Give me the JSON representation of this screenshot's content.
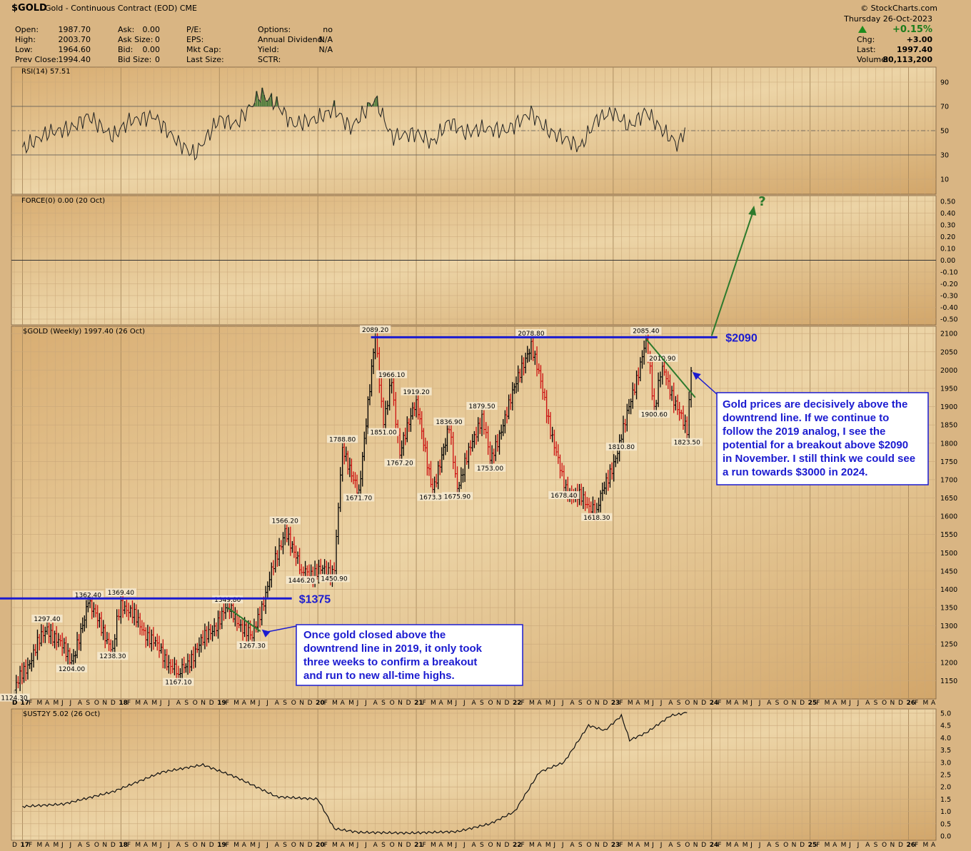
{
  "header": {
    "symbol": "$GOLD",
    "description": "Gold - Continuous Contract (EOD) CME",
    "watermark": "© StockCharts.com"
  },
  "quote": {
    "open_label": "Open:",
    "open": "1987.70",
    "high_label": "High:",
    "high": "2003.70",
    "low_label": "Low:",
    "low": "1964.60",
    "prev_close_label": "Prev Close:",
    "prev_close": "1994.40",
    "ask_label": "Ask:",
    "ask": "0.00",
    "ask_size_label": "Ask Size:",
    "ask_size": "0",
    "bid_label": "Bid:",
    "bid": "0.00",
    "bid_size_label": "Bid Size:",
    "bid_size": "0",
    "pe_label": "P/E:",
    "eps_label": "EPS:",
    "mkt_cap_label": "Mkt Cap:",
    "last_size_label": "Last Size:",
    "options_label": "Options:",
    "options": "no",
    "annual_dividend_label": "Annual Dividend:",
    "annual_dividend": "N/A",
    "yield_label": "Yield:",
    "yield": "N/A",
    "sctr_label": "SCTR:"
  },
  "summary": {
    "date": "Thursday  26-Oct-2023",
    "pct": "+0.15%",
    "chg_label": "Chg:",
    "chg": "+3.00",
    "last_label": "Last:",
    "last": "1997.40",
    "volume_label": "Volume:",
    "volume": "80,113,200"
  },
  "panels": {
    "rsi_title": "RSI(14) 57.51",
    "force_title": "FORCE(0) 0.00 (20 Oct)",
    "price_title": "$GOLD (Weekly) 1997.40 (26 Oct)",
    "ust_title": "$UST2Y 5.02 (26 Oct)"
  },
  "annotations": {
    "level_2090": "$2090",
    "level_1375": "$1375",
    "question": "?",
    "callout_2019": [
      "Once gold closed above the",
      "downtrend line in 2019, it only took",
      "three weeks to confirm a breakout",
      "and run to new all-time highs."
    ],
    "callout_2023": [
      "Gold prices are decisively above the",
      "downtrend line. If we continue to",
      "follow the 2019 analog, I see the",
      "potential for a breakout above $2090",
      "in November. I still think we could see",
      "a run towards $3000 in 2024."
    ]
  },
  "colors": {
    "up_bar": "#000000",
    "down_bar": "#cc1111",
    "resistance_line": "#1b1bd0",
    "trend_line": "#2d7a2d",
    "rsi_fill": "#4a7a3a"
  },
  "chart_data": [
    {
      "type": "line",
      "title": "RSI(14) 57.51",
      "x_range": [
        "2017-01",
        "2023-10"
      ],
      "ylim": [
        0,
        100
      ],
      "y_ticks": [
        10,
        30,
        50,
        70,
        90
      ],
      "series": [
        {
          "name": "RSI(14)",
          "x": [
            "2017-01",
            "2017-04",
            "2017-07",
            "2017-09",
            "2017-12",
            "2018-02",
            "2018-05",
            "2018-08",
            "2018-10",
            "2019-01",
            "2019-03",
            "2019-06",
            "2019-08",
            "2019-10",
            "2020-01",
            "2020-03",
            "2020-05",
            "2020-08",
            "2020-10",
            "2021-01",
            "2021-03",
            "2021-05",
            "2021-07",
            "2021-09",
            "2021-12",
            "2022-03",
            "2022-05",
            "2022-07",
            "2022-09",
            "2022-11",
            "2023-01",
            "2023-03",
            "2023-05",
            "2023-07",
            "2023-09",
            "2023-10"
          ],
          "values": [
            35,
            48,
            52,
            62,
            45,
            58,
            62,
            40,
            30,
            60,
            55,
            80,
            72,
            55,
            60,
            68,
            52,
            76,
            45,
            48,
            40,
            58,
            48,
            52,
            50,
            65,
            50,
            44,
            36,
            60,
            65,
            53,
            66,
            50,
            38,
            58
          ]
        }
      ]
    },
    {
      "type": "line",
      "title": "FORCE(0) 0.00 (20 Oct)",
      "ylim": [
        -0.5,
        0.5
      ],
      "y_ticks": [
        0.5,
        0.4,
        0.3,
        0.2,
        0.1,
        0.0,
        -0.1,
        -0.2,
        -0.3,
        -0.4,
        -0.5
      ],
      "series": [
        {
          "name": "FORCE(0)",
          "x": [
            "2017-01",
            "2023-10"
          ],
          "values": [
            0,
            0
          ]
        }
      ]
    },
    {
      "type": "bar",
      "title": "$GOLD (Weekly) 1997.40 (26 Oct)",
      "ylim": [
        1100,
        2120
      ],
      "y_ticks": [
        1150,
        1200,
        1250,
        1300,
        1350,
        1400,
        1450,
        1500,
        1550,
        1600,
        1650,
        1700,
        1750,
        1800,
        1850,
        1900,
        1950,
        2000,
        2050,
        2100
      ],
      "x_year_labels": [
        "17",
        "18",
        "19",
        "20",
        "21",
        "22",
        "23",
        "24",
        "25",
        "26"
      ],
      "x_month_labels": [
        "F",
        "M",
        "A",
        "M",
        "J",
        "J",
        "A",
        "S",
        "O",
        "N",
        "D"
      ],
      "key_points": [
        {
          "x": "2016-12",
          "y": 1124.3,
          "label": "1124.30"
        },
        {
          "x": "2017-04",
          "y": 1297.4,
          "label": "1297.40"
        },
        {
          "x": "2017-07",
          "y": 1204.0,
          "label": "1204.00"
        },
        {
          "x": "2017-09",
          "y": 1362.4,
          "label": "1362.40"
        },
        {
          "x": "2017-12",
          "y": 1238.3,
          "label": "1238.30"
        },
        {
          "x": "2018-01",
          "y": 1369.4,
          "label": "1369.40"
        },
        {
          "x": "2018-08",
          "y": 1167.1,
          "label": "1167.10"
        },
        {
          "x": "2019-02",
          "y": 1349.8,
          "label": "1349.80"
        },
        {
          "x": "2019-05",
          "y": 1267.3,
          "label": "1267.30"
        },
        {
          "x": "2019-09",
          "y": 1566.2,
          "label": "1566.20"
        },
        {
          "x": "2019-11",
          "y": 1446.2,
          "label": "1446.20"
        },
        {
          "x": "2020-03",
          "y": 1450.9,
          "label": "1450.90"
        },
        {
          "x": "2020-04",
          "y": 1788.8,
          "label": "1788.80"
        },
        {
          "x": "2020-06",
          "y": 1671.7,
          "label": "1671.70"
        },
        {
          "x": "2020-08",
          "y": 2089.2,
          "label": "2089.20"
        },
        {
          "x": "2020-09",
          "y": 1851.0,
          "label": "1851.00"
        },
        {
          "x": "2020-10",
          "y": 1966.1,
          "label": "1966.10"
        },
        {
          "x": "2020-11",
          "y": 1767.2,
          "label": "1767.20"
        },
        {
          "x": "2021-01",
          "y": 1919.2,
          "label": "1919.20"
        },
        {
          "x": "2021-03",
          "y": 1673.3,
          "label": "1673.30"
        },
        {
          "x": "2021-05",
          "y": 1836.9,
          "label": "1836.90"
        },
        {
          "x": "2021-06",
          "y": 1675.9,
          "label": "1675.90"
        },
        {
          "x": "2021-09",
          "y": 1879.5,
          "label": "1879.50"
        },
        {
          "x": "2021-10",
          "y": 1753.0,
          "label": "1753.00"
        },
        {
          "x": "2022-03",
          "y": 2078.8,
          "label": "2078.80"
        },
        {
          "x": "2022-07",
          "y": 1678.4,
          "label": "1678.40"
        },
        {
          "x": "2022-11",
          "y": 1618.3,
          "label": "1618.30"
        },
        {
          "x": "2023-02",
          "y": 1810.8,
          "label": "1810.80"
        },
        {
          "x": "2023-05",
          "y": 2085.4,
          "label": "2085.40"
        },
        {
          "x": "2023-06",
          "y": 1900.6,
          "label": "1900.60"
        },
        {
          "x": "2023-07",
          "y": 2010.9,
          "label": "2010.90"
        },
        {
          "x": "2023-10",
          "y": 1823.5,
          "label": "1823.50"
        },
        {
          "x": "2023-10",
          "y": 1997.4
        }
      ],
      "resistance_levels": [
        2090,
        1375
      ]
    },
    {
      "type": "line",
      "title": "$UST2Y 5.02 (26 Oct)",
      "ylim": [
        0,
        5.0
      ],
      "y_ticks": [
        0.0,
        0.5,
        1.0,
        1.5,
        2.0,
        2.5,
        3.0,
        3.5,
        4.0,
        4.5,
        5.0
      ],
      "series": [
        {
          "name": "$UST2Y",
          "x": [
            "2017-01",
            "2017-06",
            "2017-12",
            "2018-06",
            "2018-11",
            "2019-03",
            "2019-08",
            "2020-01",
            "2020-03",
            "2020-06",
            "2020-12",
            "2021-06",
            "2021-10",
            "2022-01",
            "2022-04",
            "2022-07",
            "2022-10",
            "2022-12",
            "2023-02",
            "2023-03",
            "2023-05",
            "2023-08",
            "2023-10"
          ],
          "values": [
            1.2,
            1.3,
            1.8,
            2.6,
            2.9,
            2.4,
            1.6,
            1.5,
            0.3,
            0.15,
            0.12,
            0.18,
            0.5,
            1.0,
            2.6,
            3.0,
            4.5,
            4.3,
            4.9,
            3.9,
            4.2,
            4.9,
            5.02
          ]
        }
      ]
    }
  ]
}
